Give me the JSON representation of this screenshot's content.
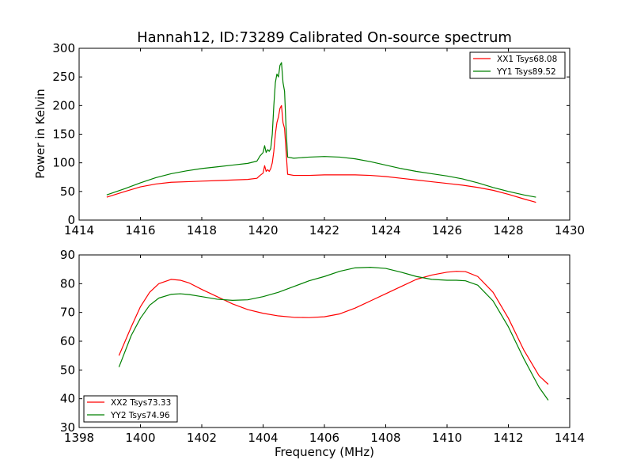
{
  "chart_data": [
    {
      "type": "line",
      "title": "Hannah12, ID:73289 Calibrated On-source spectrum",
      "xlabel": "",
      "ylabel": "Power in Kelvin",
      "xlim": [
        1414,
        1430
      ],
      "ylim": [
        0,
        300
      ],
      "xticks": [
        1414,
        1416,
        1418,
        1420,
        1422,
        1424,
        1426,
        1428,
        1430
      ],
      "yticks": [
        0,
        50,
        100,
        150,
        200,
        250,
        300
      ],
      "grid": false,
      "legend": "top-right",
      "series": [
        {
          "name": "XX1 Tsys68.08",
          "color": "#ff0000",
          "x": [
            1414.9,
            1415.5,
            1416.0,
            1416.5,
            1417.0,
            1417.5,
            1418.0,
            1418.5,
            1419.0,
            1419.5,
            1419.8,
            1419.9,
            1420.0,
            1420.05,
            1420.1,
            1420.15,
            1420.2,
            1420.25,
            1420.3,
            1420.35,
            1420.4,
            1420.45,
            1420.5,
            1420.55,
            1420.6,
            1420.65,
            1420.7,
            1420.75,
            1420.8,
            1421.0,
            1421.5,
            1422.0,
            1422.5,
            1423.0,
            1423.5,
            1424.0,
            1424.5,
            1425.0,
            1425.5,
            1426.0,
            1426.5,
            1427.0,
            1427.5,
            1428.0,
            1428.5,
            1428.9
          ],
          "y": [
            40,
            50,
            58,
            63,
            66,
            67,
            68,
            69,
            70,
            71,
            73,
            78,
            82,
            95,
            85,
            88,
            85,
            90,
            100,
            120,
            150,
            170,
            180,
            195,
            200,
            170,
            160,
            120,
            80,
            78,
            78,
            79,
            79,
            79,
            78,
            76,
            73,
            70,
            67,
            64,
            61,
            57,
            52,
            45,
            37,
            31
          ]
        },
        {
          "name": "YY1 Tsys89.52",
          "color": "#008000",
          "x": [
            1414.9,
            1415.5,
            1416.0,
            1416.5,
            1417.0,
            1417.5,
            1418.0,
            1418.5,
            1419.0,
            1419.5,
            1419.8,
            1419.9,
            1420.0,
            1420.05,
            1420.1,
            1420.15,
            1420.2,
            1420.25,
            1420.3,
            1420.35,
            1420.4,
            1420.45,
            1420.5,
            1420.55,
            1420.6,
            1420.65,
            1420.7,
            1420.75,
            1420.8,
            1421.0,
            1421.5,
            1422.0,
            1422.5,
            1423.0,
            1423.5,
            1424.0,
            1424.5,
            1425.0,
            1425.5,
            1426.0,
            1426.5,
            1427.0,
            1427.5,
            1428.0,
            1428.5,
            1428.9
          ],
          "y": [
            44,
            55,
            65,
            74,
            81,
            86,
            90,
            93,
            96,
            99,
            103,
            112,
            118,
            130,
            118,
            123,
            120,
            125,
            150,
            200,
            240,
            255,
            250,
            270,
            275,
            240,
            225,
            160,
            110,
            108,
            110,
            111,
            110,
            107,
            102,
            96,
            90,
            85,
            81,
            77,
            72,
            65,
            57,
            50,
            44,
            40
          ]
        }
      ]
    },
    {
      "type": "line",
      "title": "",
      "xlabel": "Frequency (MHz)",
      "ylabel": "",
      "xlim": [
        1398,
        1414
      ],
      "ylim": [
        30,
        90
      ],
      "xticks": [
        1398,
        1400,
        1402,
        1404,
        1406,
        1408,
        1410,
        1412,
        1414
      ],
      "yticks": [
        30,
        40,
        50,
        60,
        70,
        80,
        90
      ],
      "grid": false,
      "legend": "bottom-left",
      "series": [
        {
          "name": "XX2 Tsys73.33",
          "color": "#ff0000",
          "x": [
            1399.3,
            1399.7,
            1400.0,
            1400.3,
            1400.6,
            1401.0,
            1401.3,
            1401.6,
            1402.0,
            1402.5,
            1403.0,
            1403.5,
            1404.0,
            1404.5,
            1405.0,
            1405.5,
            1406.0,
            1406.5,
            1407.0,
            1407.5,
            1408.0,
            1408.5,
            1409.0,
            1409.5,
            1410.0,
            1410.3,
            1410.6,
            1411.0,
            1411.5,
            1412.0,
            1412.5,
            1413.0,
            1413.3
          ],
          "y": [
            55,
            65,
            72,
            77,
            80,
            81.5,
            81.2,
            80.2,
            78,
            75.5,
            73,
            71,
            69.7,
            68.8,
            68.3,
            68.2,
            68.5,
            69.5,
            71.5,
            74,
            76.5,
            79,
            81.5,
            83,
            84,
            84.3,
            84.2,
            82.5,
            77,
            68,
            57,
            48,
            45
          ]
        },
        {
          "name": "YY2 Tsys74.96",
          "color": "#008000",
          "x": [
            1399.3,
            1399.7,
            1400.0,
            1400.3,
            1400.6,
            1401.0,
            1401.3,
            1401.6,
            1402.0,
            1402.5,
            1403.0,
            1403.5,
            1404.0,
            1404.5,
            1405.0,
            1405.5,
            1406.0,
            1406.5,
            1407.0,
            1407.5,
            1408.0,
            1408.5,
            1409.0,
            1409.5,
            1410.0,
            1410.3,
            1410.6,
            1411.0,
            1411.5,
            1412.0,
            1412.5,
            1413.0,
            1413.3
          ],
          "y": [
            51,
            62,
            68,
            72.5,
            75,
            76.3,
            76.5,
            76.2,
            75.5,
            74.6,
            74.2,
            74.4,
            75.5,
            77,
            79,
            81,
            82.5,
            84.3,
            85.5,
            85.7,
            85.3,
            84,
            82.5,
            81.5,
            81.2,
            81.2,
            81,
            79.5,
            74,
            65,
            54,
            44,
            39.5
          ]
        }
      ]
    }
  ]
}
